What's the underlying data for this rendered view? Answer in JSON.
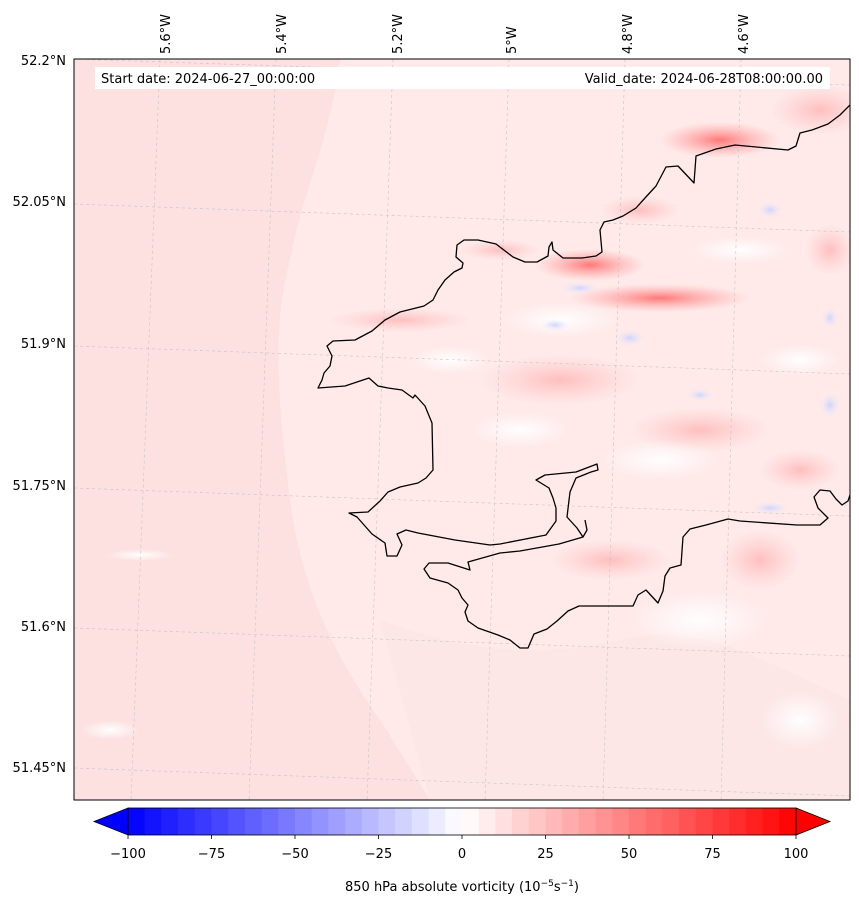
{
  "header": {
    "start_label": "Start date: 2024-06-27_00:00:00",
    "valid_label": "Valid_date: 2024-06-28T08:00:00.00"
  },
  "axes": {
    "lon_labels": [
      "5.6°W",
      "5.4°W",
      "5.2°W",
      "5°W",
      "4.8°W",
      "4.6°W"
    ],
    "lat_labels": [
      "52.2°N",
      "52.05°N",
      "51.9°N",
      "51.75°N",
      "51.6°N",
      "51.45°N"
    ]
  },
  "colorbar": {
    "ticks": [
      "−100",
      "−75",
      "−50",
      "−25",
      "0",
      "25",
      "50",
      "75",
      "100"
    ],
    "label": "850 hPa absolute vorticity (10",
    "label_exp1": "−5",
    "label_mid": "s",
    "label_exp2": "−1",
    "label_end": ")",
    "min_color": "#0000ff",
    "mid_color": "#ffffff",
    "max_color": "#ff0000",
    "extend": "both"
  },
  "colors": {
    "land_shading": "#fde2e2",
    "sea_shading": "#ffecec",
    "coastline": "#000000",
    "grid": "#bbbbbb"
  }
}
